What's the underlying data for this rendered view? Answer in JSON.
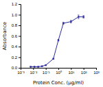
{
  "chart_data": {
    "type": "line",
    "x": [
      0.00625,
      0.0125,
      0.025,
      0.05,
      0.1,
      0.4,
      1.0,
      2.5,
      10.0,
      40.0,
      100.0
    ],
    "series": [
      {
        "values": [
          0.02,
          0.02,
          0.02,
          0.03,
          0.05,
          0.17,
          0.52,
          0.84,
          0.87,
          0.96,
          0.96
        ],
        "errors": [
          0.003,
          0.003,
          0.003,
          0.003,
          0.004,
          0.008,
          0.015,
          0.02,
          0.025,
          0.035,
          0.025
        ],
        "color": "#2b2b9e",
        "marker": "square"
      }
    ],
    "xlabel": "Protein Conc. (μg/ml)",
    "ylabel": "Absorbance",
    "log": "x",
    "xlim": [
      0.001,
      1000
    ],
    "xticks": [
      {
        "value": 0.001,
        "label": "10⁻³"
      },
      {
        "value": 0.01,
        "label": "10⁻²"
      },
      {
        "value": 0.1,
        "label": "10⁻¹"
      },
      {
        "value": 1,
        "label": "10⁰"
      },
      {
        "value": 10,
        "label": "10¹"
      },
      {
        "value": 100,
        "label": "10²"
      },
      {
        "value": 1000,
        "label": "10³"
      }
    ],
    "ylim": [
      0,
      1.2
    ],
    "yticks": [
      {
        "value": 0,
        "label": "0.0"
      },
      0.2,
      0.4,
      0.6,
      0.8,
      {
        "value": 1,
        "label": "1.0"
      },
      1.2
    ],
    "grid": false
  }
}
